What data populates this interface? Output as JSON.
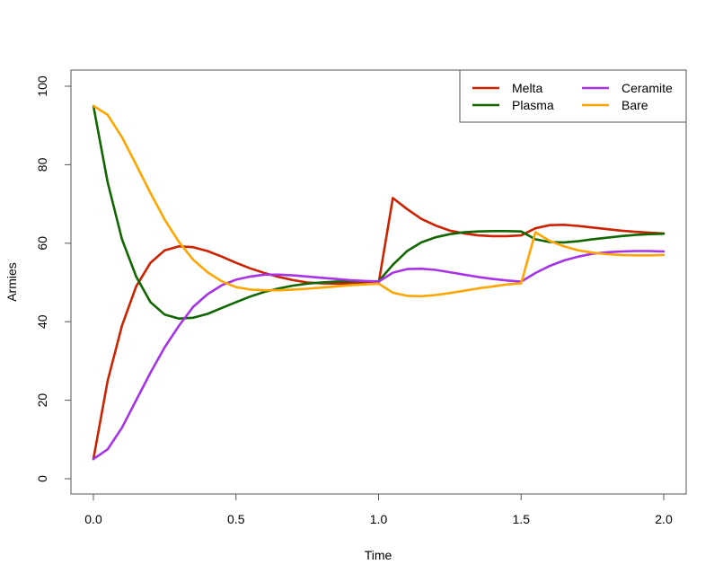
{
  "chart_data": {
    "type": "line",
    "xlabel": "Time",
    "ylabel": "Armies",
    "xlim": [
      0,
      2
    ],
    "ylim": [
      0,
      100
    ],
    "x_ticks": [
      "0.0",
      "0.5",
      "1.0",
      "1.5",
      "2.0"
    ],
    "y_ticks": [
      "0",
      "20",
      "40",
      "60",
      "80",
      "100"
    ],
    "grid": false,
    "legend_position": "top-right",
    "x": [
      0,
      0.05,
      0.1,
      0.15,
      0.2,
      0.25,
      0.3,
      0.35,
      0.4,
      0.45,
      0.5,
      0.55,
      0.6,
      0.65,
      0.7,
      0.75,
      0.8,
      0.85,
      0.9,
      0.95,
      1.0,
      1.05,
      1.1,
      1.15,
      1.2,
      1.25,
      1.3,
      1.35,
      1.4,
      1.45,
      1.5,
      1.55,
      1.6,
      1.65,
      1.7,
      1.75,
      1.8,
      1.85,
      1.9,
      1.95,
      2.0
    ],
    "series": [
      {
        "name": "Melta",
        "color": "#CC2200",
        "values": [
          5,
          25,
          39,
          49,
          55,
          58.2,
          59.2,
          59,
          58,
          56.6,
          55,
          53.6,
          52.4,
          51.4,
          50.6,
          50,
          49.8,
          49.7,
          49.7,
          49.7,
          49.7,
          71.5,
          68.7,
          66.2,
          64.5,
          63.2,
          62.5,
          62,
          61.8,
          61.8,
          62,
          63.8,
          64.6,
          64.7,
          64.4,
          64,
          63.6,
          63.2,
          62.9,
          62.7,
          62.5
        ]
      },
      {
        "name": "Plasma",
        "color": "#116600",
        "values": [
          95,
          75.5,
          61,
          51.5,
          45,
          41.8,
          40.8,
          41,
          42,
          43.5,
          45,
          46.4,
          47.6,
          48.5,
          49.2,
          49.7,
          50,
          50.2,
          50.3,
          50.3,
          50.3,
          54.5,
          58,
          60.2,
          61.5,
          62.3,
          62.8,
          63,
          63.1,
          63.1,
          63,
          61,
          60.3,
          60.2,
          60.5,
          61,
          61.4,
          61.8,
          62.1,
          62.3,
          62.4
        ]
      },
      {
        "name": "Ceramite",
        "color": "#A633E6",
        "values": [
          5,
          7.5,
          13,
          20,
          27,
          33.5,
          39,
          43.8,
          47,
          49.3,
          50.7,
          51.5,
          52,
          52,
          51.8,
          51.5,
          51.2,
          50.9,
          50.6,
          50.4,
          50.2,
          52.5,
          53.4,
          53.5,
          53.2,
          52.6,
          52,
          51.4,
          50.9,
          50.5,
          50.2,
          52.4,
          54.2,
          55.6,
          56.6,
          57.3,
          57.7,
          57.9,
          58,
          58,
          57.9
        ]
      },
      {
        "name": "Bare",
        "color": "#FFA500",
        "values": [
          95,
          92.7,
          87,
          80,
          72.8,
          66,
          60.3,
          55.8,
          52.6,
          50.3,
          48.8,
          48.2,
          48,
          48,
          48.2,
          48.4,
          48.7,
          49,
          49.3,
          49.5,
          49.7,
          47.4,
          46.6,
          46.5,
          46.8,
          47.3,
          47.9,
          48.5,
          49,
          49.5,
          49.8,
          62.8,
          60.6,
          59.2,
          58.2,
          57.6,
          57.2,
          57,
          56.9,
          56.9,
          57
        ]
      }
    ]
  }
}
